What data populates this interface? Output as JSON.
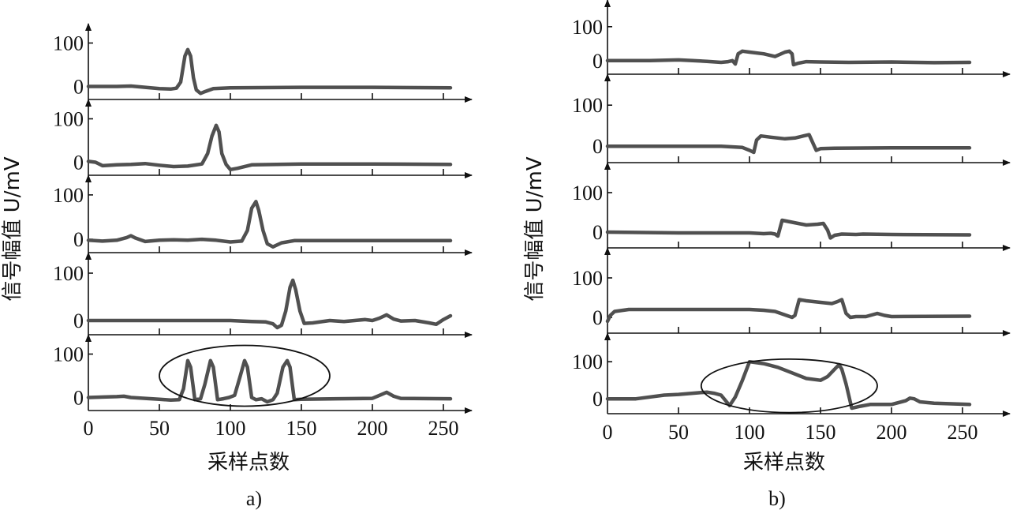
{
  "chart_data": [
    {
      "type": "line",
      "panel_label": "a)",
      "xlabel": "采样点数",
      "ylabel": "信号幅值 U/mV",
      "xlim": [
        0,
        260
      ],
      "x_ticks": [
        0,
        50,
        100,
        150,
        200,
        250
      ],
      "y_ticks": [
        0,
        100
      ],
      "highlight_ellipse": {
        "cx": 110,
        "cy": 50,
        "rx": 60,
        "ry": 70
      },
      "subplots": [
        {
          "ylim": [
            -30,
            130
          ],
          "points": [
            [
              0,
              0
            ],
            [
              20,
              0
            ],
            [
              30,
              1
            ],
            [
              40,
              -2
            ],
            [
              50,
              -5
            ],
            [
              58,
              -6
            ],
            [
              62,
              -4
            ],
            [
              65,
              10
            ],
            [
              68,
              70
            ],
            [
              70,
              85
            ],
            [
              72,
              70
            ],
            [
              74,
              20
            ],
            [
              76,
              -8
            ],
            [
              79,
              -16
            ],
            [
              82,
              -12
            ],
            [
              88,
              -5
            ],
            [
              100,
              -3
            ],
            [
              150,
              -2
            ],
            [
              200,
              -2
            ],
            [
              255,
              -3
            ]
          ]
        },
        {
          "ylim": [
            -30,
            130
          ],
          "points": [
            [
              0,
              2
            ],
            [
              5,
              0
            ],
            [
              10,
              -8
            ],
            [
              20,
              -6
            ],
            [
              30,
              -5
            ],
            [
              40,
              -3
            ],
            [
              50,
              -7
            ],
            [
              60,
              -10
            ],
            [
              70,
              -9
            ],
            [
              80,
              -4
            ],
            [
              84,
              20
            ],
            [
              87,
              60
            ],
            [
              90,
              85
            ],
            [
              92,
              70
            ],
            [
              94,
              20
            ],
            [
              97,
              -5
            ],
            [
              100,
              -17
            ],
            [
              105,
              -14
            ],
            [
              115,
              -6
            ],
            [
              150,
              -4
            ],
            [
              200,
              -4
            ],
            [
              255,
              -5
            ]
          ]
        },
        {
          "ylim": [
            -30,
            130
          ],
          "points": [
            [
              0,
              -2
            ],
            [
              10,
              -4
            ],
            [
              20,
              -2
            ],
            [
              27,
              4
            ],
            [
              30,
              8
            ],
            [
              33,
              3
            ],
            [
              40,
              -5
            ],
            [
              50,
              -2
            ],
            [
              60,
              -1
            ],
            [
              70,
              -2
            ],
            [
              80,
              0
            ],
            [
              90,
              -2
            ],
            [
              100,
              -6
            ],
            [
              108,
              -4
            ],
            [
              112,
              20
            ],
            [
              115,
              70
            ],
            [
              118,
              85
            ],
            [
              120,
              65
            ],
            [
              123,
              20
            ],
            [
              126,
              -10
            ],
            [
              130,
              -17
            ],
            [
              136,
              -8
            ],
            [
              145,
              -3
            ],
            [
              200,
              -3
            ],
            [
              255,
              -3
            ]
          ]
        },
        {
          "ylim": [
            -30,
            130
          ],
          "points": [
            [
              0,
              0
            ],
            [
              50,
              0
            ],
            [
              100,
              0
            ],
            [
              115,
              -2
            ],
            [
              125,
              -3
            ],
            [
              130,
              -7
            ],
            [
              133,
              -15
            ],
            [
              136,
              -10
            ],
            [
              139,
              20
            ],
            [
              142,
              70
            ],
            [
              144,
              85
            ],
            [
              146,
              65
            ],
            [
              149,
              20
            ],
            [
              152,
              -6
            ],
            [
              158,
              -5
            ],
            [
              170,
              0
            ],
            [
              180,
              -2
            ],
            [
              195,
              2
            ],
            [
              200,
              0
            ],
            [
              205,
              5
            ],
            [
              210,
              12
            ],
            [
              215,
              3
            ],
            [
              220,
              -1
            ],
            [
              230,
              0
            ],
            [
              240,
              -5
            ],
            [
              245,
              -8
            ],
            [
              250,
              2
            ],
            [
              255,
              10
            ]
          ]
        },
        {
          "ylim": [
            -30,
            130
          ],
          "points": [
            [
              0,
              0
            ],
            [
              20,
              2
            ],
            [
              25,
              3
            ],
            [
              30,
              0
            ],
            [
              40,
              -2
            ],
            [
              50,
              -4
            ],
            [
              58,
              -6
            ],
            [
              64,
              -5
            ],
            [
              67,
              20
            ],
            [
              70,
              85
            ],
            [
              72,
              70
            ],
            [
              75,
              -5
            ],
            [
              79,
              -3
            ],
            [
              82,
              30
            ],
            [
              86,
              85
            ],
            [
              88,
              70
            ],
            [
              91,
              -5
            ],
            [
              95,
              -3
            ],
            [
              99,
              0
            ],
            [
              103,
              5
            ],
            [
              107,
              50
            ],
            [
              110,
              85
            ],
            [
              112,
              70
            ],
            [
              115,
              0
            ],
            [
              118,
              -5
            ],
            [
              122,
              -3
            ],
            [
              126,
              -10
            ],
            [
              130,
              -5
            ],
            [
              133,
              10
            ],
            [
              137,
              70
            ],
            [
              140,
              85
            ],
            [
              142,
              70
            ],
            [
              145,
              -5
            ],
            [
              150,
              -4
            ],
            [
              175,
              -3
            ],
            [
              200,
              -2
            ],
            [
              205,
              5
            ],
            [
              210,
              12
            ],
            [
              215,
              3
            ],
            [
              220,
              -2
            ],
            [
              255,
              -3
            ]
          ]
        }
      ]
    },
    {
      "type": "line",
      "panel_label": "b)",
      "xlabel": "采样点数",
      "ylabel": "信号幅值 U/mV",
      "xlim": [
        0,
        260
      ],
      "x_ticks": [
        0,
        50,
        100,
        150,
        200,
        250
      ],
      "y_ticks": [
        0,
        100
      ],
      "highlight_ellipse": {
        "cx": 128,
        "cy": 35,
        "rx": 62,
        "ry": 72
      },
      "subplots": [
        {
          "ylim": [
            -40,
            160
          ],
          "points": [
            [
              0,
              0
            ],
            [
              30,
              0
            ],
            [
              50,
              2
            ],
            [
              60,
              0
            ],
            [
              70,
              -2
            ],
            [
              80,
              -5
            ],
            [
              85,
              -3
            ],
            [
              88,
              0
            ],
            [
              90,
              -10
            ],
            [
              92,
              20
            ],
            [
              95,
              28
            ],
            [
              100,
              25
            ],
            [
              110,
              20
            ],
            [
              118,
              12
            ],
            [
              125,
              25
            ],
            [
              128,
              28
            ],
            [
              130,
              20
            ],
            [
              131,
              -12
            ],
            [
              134,
              -8
            ],
            [
              140,
              -3
            ],
            [
              150,
              -4
            ],
            [
              170,
              -5
            ],
            [
              200,
              -4
            ],
            [
              230,
              -6
            ],
            [
              255,
              -5
            ]
          ]
        },
        {
          "ylim": [
            -40,
            160
          ],
          "points": [
            [
              0,
              0
            ],
            [
              50,
              0
            ],
            [
              80,
              0
            ],
            [
              90,
              -2
            ],
            [
              95,
              -3
            ],
            [
              100,
              -10
            ],
            [
              103,
              -15
            ],
            [
              105,
              15
            ],
            [
              108,
              25
            ],
            [
              115,
              22
            ],
            [
              125,
              18
            ],
            [
              132,
              20
            ],
            [
              138,
              25
            ],
            [
              142,
              28
            ],
            [
              145,
              5
            ],
            [
              147,
              -10
            ],
            [
              150,
              -6
            ],
            [
              160,
              -5
            ],
            [
              200,
              -4
            ],
            [
              255,
              -4
            ]
          ]
        },
        {
          "ylim": [
            -40,
            160
          ],
          "points": [
            [
              0,
              0
            ],
            [
              50,
              -2
            ],
            [
              100,
              -2
            ],
            [
              110,
              -4
            ],
            [
              115,
              -3
            ],
            [
              118,
              -5
            ],
            [
              120,
              -10
            ],
            [
              123,
              30
            ],
            [
              130,
              25
            ],
            [
              140,
              18
            ],
            [
              148,
              20
            ],
            [
              152,
              22
            ],
            [
              155,
              5
            ],
            [
              157,
              -15
            ],
            [
              160,
              -8
            ],
            [
              165,
              -5
            ],
            [
              175,
              -6
            ],
            [
              180,
              -5
            ],
            [
              200,
              -6
            ],
            [
              255,
              -7
            ]
          ]
        },
        {
          "ylim": [
            -40,
            160
          ],
          "points": [
            [
              0,
              -10
            ],
            [
              2,
              5
            ],
            [
              5,
              15
            ],
            [
              15,
              20
            ],
            [
              50,
              20
            ],
            [
              80,
              20
            ],
            [
              100,
              20
            ],
            [
              110,
              18
            ],
            [
              118,
              15
            ],
            [
              126,
              5
            ],
            [
              130,
              0
            ],
            [
              132,
              5
            ],
            [
              135,
              45
            ],
            [
              140,
              42
            ],
            [
              150,
              38
            ],
            [
              158,
              35
            ],
            [
              162,
              40
            ],
            [
              165,
              45
            ],
            [
              168,
              10
            ],
            [
              171,
              0
            ],
            [
              175,
              2
            ],
            [
              182,
              2
            ],
            [
              190,
              10
            ],
            [
              195,
              5
            ],
            [
              200,
              2
            ],
            [
              255,
              3
            ]
          ]
        },
        {
          "ylim": [
            -40,
            160
          ],
          "points": [
            [
              0,
              0
            ],
            [
              20,
              0
            ],
            [
              40,
              10
            ],
            [
              50,
              12
            ],
            [
              60,
              15
            ],
            [
              70,
              18
            ],
            [
              75,
              15
            ],
            [
              80,
              10
            ],
            [
              86,
              -18
            ],
            [
              90,
              5
            ],
            [
              95,
              50
            ],
            [
              100,
              100
            ],
            [
              110,
              95
            ],
            [
              120,
              85
            ],
            [
              130,
              70
            ],
            [
              140,
              55
            ],
            [
              150,
              50
            ],
            [
              155,
              60
            ],
            [
              160,
              80
            ],
            [
              163,
              92
            ],
            [
              165,
              80
            ],
            [
              168,
              40
            ],
            [
              172,
              -25
            ],
            [
              178,
              -20
            ],
            [
              185,
              -15
            ],
            [
              195,
              -15
            ],
            [
              200,
              -15
            ],
            [
              205,
              -10
            ],
            [
              210,
              -5
            ],
            [
              213,
              2
            ],
            [
              216,
              0
            ],
            [
              220,
              -8
            ],
            [
              230,
              -12
            ],
            [
              255,
              -15
            ]
          ]
        }
      ]
    }
  ]
}
